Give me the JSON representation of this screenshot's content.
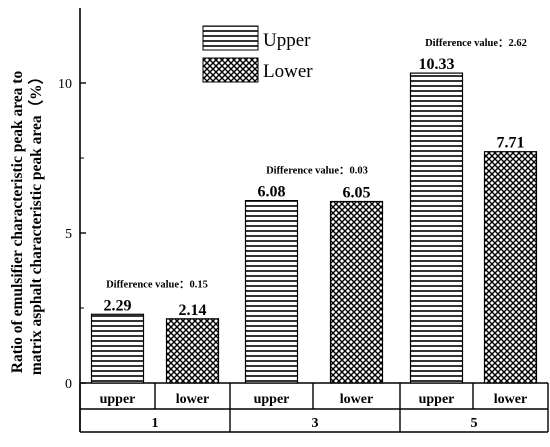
{
  "chart_data": {
    "type": "bar",
    "ylabel_line1": "Ratio of emulsifier characteristic peak area to",
    "ylabel_line2": "matrix asphalt characteristic peak area（%）",
    "ylim": [
      0,
      12.5
    ],
    "yticks": [
      0,
      5,
      10
    ],
    "grid": false,
    "legend_position": "top-center",
    "series": [
      {
        "name": "Upper",
        "pattern": "horizontal-lines"
      },
      {
        "name": "Lower",
        "pattern": "crosshatch"
      }
    ],
    "groups": [
      {
        "label": "1",
        "categories": [
          "upper",
          "lower"
        ],
        "values": [
          2.29,
          2.14
        ],
        "value_labels": [
          "2.29",
          "2.14"
        ],
        "difference_label": "Difference value：0.15"
      },
      {
        "label": "3",
        "categories": [
          "upper",
          "lower"
        ],
        "values": [
          6.08,
          6.05
        ],
        "value_labels": [
          "6.08",
          "6.05"
        ],
        "difference_label": "Difference value：0.03"
      },
      {
        "label": "5",
        "categories": [
          "upper",
          "lower"
        ],
        "values": [
          10.33,
          7.71
        ],
        "value_labels": [
          "10.33",
          "7.71"
        ],
        "difference_label": "Difference value：2.62"
      }
    ]
  }
}
